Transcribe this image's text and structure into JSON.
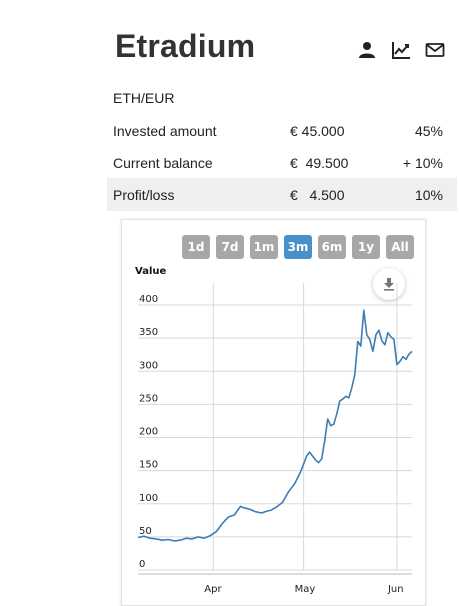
{
  "header": {
    "title": "Etradium",
    "icons": [
      "user-icon",
      "line-chart-icon",
      "mail-icon"
    ]
  },
  "pair": "ETH/EUR",
  "summary": [
    {
      "label": "Invested amount",
      "amount": "€ 45.000",
      "percent": "45%"
    },
    {
      "label": "Current balance",
      "amount": "€  49.500",
      "percent": "+ 10%"
    },
    {
      "label": "Profit/loss",
      "amount": "€   4.500",
      "percent": "10%"
    }
  ],
  "range_buttons": [
    {
      "label": "1d",
      "active": false
    },
    {
      "label": "7d",
      "active": false
    },
    {
      "label": "1m",
      "active": false
    },
    {
      "label": "3m",
      "active": true
    },
    {
      "label": "6m",
      "active": false
    },
    {
      "label": "1y",
      "active": false
    },
    {
      "label": "All",
      "active": false
    }
  ],
  "colors": {
    "line": "#3d7cb5",
    "button": "#a7a7a7",
    "button_active": "#4a90c8",
    "shaded_row": "#efefef"
  },
  "chart_data": {
    "type": "line",
    "ylabel": "Value",
    "ylim": [
      0,
      400
    ],
    "yticks": [
      0,
      50,
      100,
      150,
      200,
      250,
      300,
      350,
      400
    ],
    "xticks": [
      {
        "label": "Apr",
        "day": 25
      },
      {
        "label": "May",
        "day": 55
      },
      {
        "label": "Jun",
        "day": 86
      }
    ],
    "xlim": [
      0,
      91
    ],
    "grid": true,
    "series": [
      {
        "x": [
          0,
          2,
          4,
          6,
          8,
          10,
          12,
          14,
          16,
          18,
          20,
          22,
          24,
          26,
          28,
          30,
          32,
          34,
          35,
          37,
          39,
          41,
          43,
          44,
          46,
          48,
          50,
          52,
          54,
          56,
          57,
          59,
          60,
          61,
          62,
          63,
          64,
          65,
          66,
          67,
          68,
          69,
          70,
          71,
          72,
          73,
          74,
          75,
          76,
          77,
          78,
          79,
          80,
          81,
          82,
          83,
          84,
          85,
          86,
          87,
          88,
          89,
          90,
          91
        ],
        "values": [
          49,
          51,
          48,
          47,
          45,
          46,
          44,
          45,
          48,
          47,
          50,
          48,
          52,
          58,
          70,
          80,
          83,
          96,
          94,
          92,
          88,
          86,
          89,
          90,
          95,
          102,
          118,
          130,
          148,
          172,
          178,
          166,
          162,
          168,
          195,
          228,
          218,
          220,
          235,
          255,
          258,
          262,
          260,
          275,
          295,
          345,
          338,
          392,
          355,
          348,
          330,
          355,
          362,
          346,
          340,
          358,
          352,
          348,
          310,
          315,
          322,
          318,
          326,
          330
        ]
      }
    ]
  }
}
